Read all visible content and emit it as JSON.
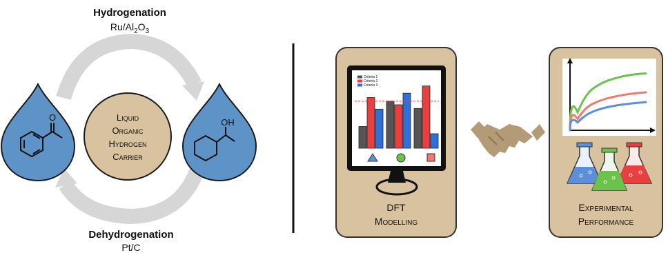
{
  "left_panel": {
    "hydrogenation_label": "Hydrogenation",
    "hydrogenation_catalyst": {
      "prefix": "Ru/Al",
      "sub1": "2",
      "mid": "O",
      "sub2": "3"
    },
    "dehydrogenation_label": "Dehydrogenation",
    "dehydrogenation_catalyst": "Pt/C",
    "center_circle": {
      "line1": "Liquid",
      "line2": "Organic",
      "line3": "Hydrogen",
      "line4": "Carrier"
    },
    "right_molecule_label": "OH",
    "left_molecule_label": "O"
  },
  "right_panel": {
    "monitor_caption_line1": "DFT",
    "monitor_caption_line2": "Modelling",
    "flask_caption_line1": "Experimental",
    "flask_caption_line2": "Performance",
    "legend": [
      "Criteria 1",
      "Criteria 2",
      "Criteria 3"
    ]
  },
  "chart_data": [
    {
      "type": "bar",
      "categories": [
        "triangle",
        "circle",
        "square"
      ],
      "series": [
        {
          "name": "Criteria 1",
          "values": [
            3,
            6.5,
            5.5
          ]
        },
        {
          "name": "Criteria 2",
          "values": [
            7,
            6,
            8.6
          ]
        },
        {
          "name": "Criteria 3",
          "values": [
            5.4,
            7.6,
            2
          ]
        }
      ],
      "threshold": 6.5,
      "ylim": [
        0,
        10
      ],
      "legend_position": "top-left",
      "colors": [
        "#555555",
        "#e84040",
        "#2f6fd6"
      ]
    },
    {
      "type": "line",
      "series": [
        {
          "color": "#6cc24a",
          "values": [
            [
              0,
              0
            ],
            [
              1,
              5.5
            ],
            [
              2,
              7.2
            ],
            [
              3,
              8.0
            ],
            [
              4,
              8.5
            ],
            [
              5,
              8.7
            ]
          ]
        },
        {
          "color": "#f07a6e",
          "values": [
            [
              0,
              0
            ],
            [
              1,
              3.5
            ],
            [
              2,
              4.6
            ],
            [
              3,
              5.2
            ],
            [
              4,
              5.6
            ],
            [
              5,
              5.8
            ]
          ]
        },
        {
          "color": "#5b8fd9",
          "values": [
            [
              0,
              0
            ],
            [
              1,
              2.4
            ],
            [
              2,
              3.3
            ],
            [
              3,
              3.8
            ],
            [
              4,
              4.1
            ],
            [
              5,
              4.3
            ]
          ]
        }
      ],
      "xlim": [
        0,
        5
      ],
      "ylim": [
        0,
        10
      ]
    }
  ],
  "colors": {
    "drop": "#5e93c8",
    "drop_stroke": "#1a1a1a",
    "tan": "#d9c2a0",
    "arrow": "#d6d6d6",
    "handshake": "#b39b78"
  }
}
